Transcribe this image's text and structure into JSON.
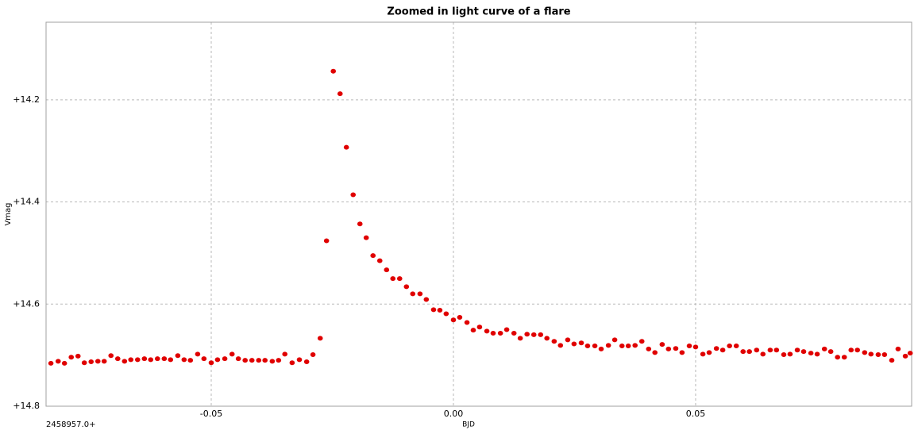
{
  "chart_data": {
    "type": "scatter",
    "title": "Zoomed in light curve of a flare",
    "xlabel": "BJD",
    "ylabel": "Vmag",
    "x_offset_label": "2458957.0+",
    "color": "#e00000",
    "grid": true,
    "y_inverted": true,
    "xlim": [
      -0.0841,
      0.0946
    ],
    "xticks": [
      -0.05,
      {
        "value": 0,
        "label": "0.00"
      },
      0.05
    ],
    "ylim": [
      14.048,
      14.8
    ],
    "yticks": [
      {
        "value": 14.2,
        "label": "+14.2"
      },
      {
        "value": 14.4,
        "label": "+14.4"
      },
      {
        "value": 14.6,
        "label": "+14.6"
      },
      {
        "value": 14.8,
        "label": "+14.8"
      }
    ],
    "x": [
      -0.0831,
      -0.0816,
      -0.0803,
      -0.0789,
      -0.0775,
      -0.0762,
      -0.0748,
      -0.0734,
      -0.0721,
      -0.0707,
      -0.0693,
      -0.0679,
      -0.0666,
      -0.0652,
      -0.0638,
      -0.0625,
      -0.0611,
      -0.0597,
      -0.0584,
      -0.0569,
      -0.0556,
      -0.0543,
      -0.0528,
      -0.0515,
      -0.05,
      -0.0487,
      -0.0472,
      -0.0457,
      -0.0444,
      -0.043,
      -0.0416,
      -0.0402,
      -0.0389,
      -0.0374,
      -0.0361,
      -0.0348,
      -0.0333,
      -0.0318,
      -0.0303,
      -0.029,
      -0.0275,
      -0.0262,
      -0.0248,
      -0.0234,
      -0.0221,
      -0.0207,
      -0.0193,
      -0.018,
      -0.0166,
      -0.0152,
      -0.0138,
      -0.0125,
      -0.0111,
      -0.0097,
      -0.0084,
      -0.0069,
      -0.0056,
      -0.0041,
      -0.0028,
      -0.0015,
      0.0,
      0.0013,
      0.0028,
      0.0041,
      0.0054,
      0.0069,
      0.0082,
      0.0097,
      0.011,
      0.0125,
      0.0138,
      0.0152,
      0.0166,
      0.018,
      0.0193,
      0.0208,
      0.0221,
      0.0236,
      0.0249,
      0.0264,
      0.0277,
      0.0292,
      0.0305,
      0.032,
      0.0333,
      0.0348,
      0.0361,
      0.0375,
      0.0389,
      0.0403,
      0.0416,
      0.0431,
      0.0444,
      0.0459,
      0.0472,
      0.0487,
      0.05,
      0.0515,
      0.0528,
      0.0543,
      0.0556,
      0.057,
      0.0584,
      0.0598,
      0.0611,
      0.0626,
      0.0639,
      0.0654,
      0.0667,
      0.0682,
      0.0695,
      0.071,
      0.0723,
      0.0738,
      0.0751,
      0.0766,
      0.0779,
      0.0793,
      0.0807,
      0.0821,
      0.0834,
      0.0849,
      0.0862,
      0.0877,
      0.089,
      0.0905,
      0.0918,
      0.0933,
      0.0943
    ],
    "values": [
      14.716,
      14.712,
      14.716,
      14.704,
      14.702,
      14.715,
      14.713,
      14.712,
      14.712,
      14.701,
      14.707,
      14.712,
      14.709,
      14.709,
      14.707,
      14.709,
      14.707,
      14.707,
      14.709,
      14.701,
      14.709,
      14.71,
      14.698,
      14.707,
      14.715,
      14.709,
      14.707,
      14.698,
      14.707,
      14.71,
      14.71,
      14.71,
      14.71,
      14.712,
      14.71,
      14.698,
      14.715,
      14.709,
      14.713,
      14.699,
      14.667,
      14.476,
      14.144,
      14.188,
      14.293,
      14.386,
      14.443,
      14.47,
      14.505,
      14.515,
      14.533,
      14.55,
      14.55,
      14.566,
      14.58,
      14.58,
      14.591,
      14.611,
      14.612,
      14.619,
      14.631,
      14.626,
      14.636,
      14.651,
      14.645,
      14.653,
      14.657,
      14.657,
      14.65,
      14.657,
      14.667,
      14.659,
      14.66,
      14.66,
      14.667,
      14.673,
      14.681,
      14.67,
      14.678,
      14.676,
      14.682,
      14.682,
      14.688,
      14.681,
      14.67,
      14.682,
      14.682,
      14.681,
      14.673,
      14.688,
      14.695,
      14.679,
      14.688,
      14.687,
      14.695,
      14.682,
      14.684,
      14.698,
      14.695,
      14.687,
      14.69,
      14.682,
      14.682,
      14.693,
      14.693,
      14.69,
      14.698,
      14.69,
      14.69,
      14.699,
      14.698,
      14.69,
      14.693,
      14.696,
      14.698,
      14.688,
      14.693,
      14.704,
      14.704,
      14.69,
      14.69,
      14.695,
      14.698,
      14.699,
      14.699,
      14.71,
      14.688,
      14.702,
      14.696
    ]
  }
}
